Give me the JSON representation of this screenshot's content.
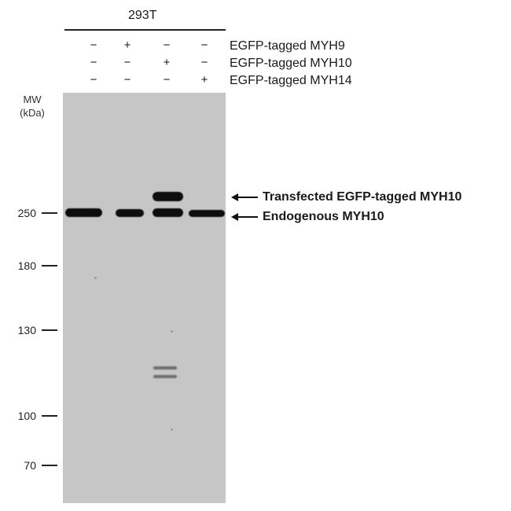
{
  "cell_line": "293T",
  "treatment_rows": [
    {
      "label": "EGFP-tagged MYH9",
      "signs": [
        "−",
        "+",
        "−",
        "−"
      ]
    },
    {
      "label": "EGFP-tagged MYH10",
      "signs": [
        "−",
        "−",
        "+",
        "−"
      ]
    },
    {
      "label": "EGFP-tagged MYH14",
      "signs": [
        "−",
        "−",
        "−",
        "+"
      ]
    }
  ],
  "mw_axis": {
    "title_line1": "MW",
    "title_line2": "(kDa)",
    "markers": [
      "250",
      "180",
      "130",
      "100",
      "70"
    ]
  },
  "annotations": {
    "upper": "Transfected EGFP-tagged MYH10",
    "lower": "Endogenous MYH10"
  },
  "colors": {
    "blot_background": "#c6c6c6",
    "band": "#0d0d0d",
    "text": "#1a1a1a"
  }
}
